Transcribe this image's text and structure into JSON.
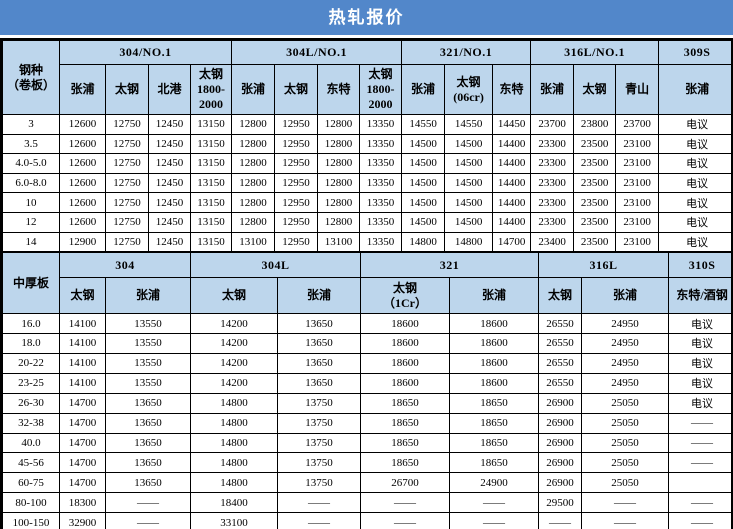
{
  "title": "热轧报价",
  "colors": {
    "title_bg": "#5287ca",
    "title_text": "#ffffff",
    "header_bg": "#bdd6ec",
    "grid_line": "#000000",
    "cell_bg": "#ffffff"
  },
  "sections": [
    {
      "name": "卷板",
      "corner": "钢种\n（卷板）",
      "groups": [
        {
          "grade": "304/NO.1",
          "mills": [
            "张浦",
            "太钢",
            "北港",
            "太钢\n1800-\n2000"
          ]
        },
        {
          "grade": "304L/NO.1",
          "mills": [
            "张浦",
            "太钢",
            "东特",
            "太钢\n1800-\n2000"
          ]
        },
        {
          "grade": "321/NO.1",
          "mills": [
            "张浦",
            "太钢\n(06cr)",
            "东特"
          ]
        },
        {
          "grade": "316L/NO.1",
          "mills": [
            "张浦",
            "太钢",
            "青山"
          ]
        },
        {
          "grade": "309S",
          "mills": [
            "张浦"
          ]
        }
      ],
      "rows": [
        {
          "spec": "3",
          "values": [
            "12600",
            "12750",
            "12450",
            "13150",
            "12800",
            "12950",
            "12800",
            "13350",
            "14550",
            "14550",
            "14450",
            "23700",
            "23800",
            "23700",
            "电议"
          ]
        },
        {
          "spec": "3.5",
          "values": [
            "12600",
            "12750",
            "12450",
            "13150",
            "12800",
            "12950",
            "12800",
            "13350",
            "14500",
            "14500",
            "14400",
            "23300",
            "23500",
            "23100",
            "电议"
          ]
        },
        {
          "spec": "4.0-5.0",
          "values": [
            "12600",
            "12750",
            "12450",
            "13150",
            "12800",
            "12950",
            "12800",
            "13350",
            "14500",
            "14500",
            "14400",
            "23300",
            "23500",
            "23100",
            "电议"
          ]
        },
        {
          "spec": "6.0-8.0",
          "values": [
            "12600",
            "12750",
            "12450",
            "13150",
            "12800",
            "12950",
            "12800",
            "13350",
            "14500",
            "14500",
            "14400",
            "23300",
            "23500",
            "23100",
            "电议"
          ]
        },
        {
          "spec": "10",
          "values": [
            "12600",
            "12750",
            "12450",
            "13150",
            "12800",
            "12950",
            "12800",
            "13350",
            "14500",
            "14500",
            "14400",
            "23300",
            "23500",
            "23100",
            "电议"
          ]
        },
        {
          "spec": "12",
          "values": [
            "12600",
            "12750",
            "12450",
            "13150",
            "12800",
            "12950",
            "12800",
            "13350",
            "14500",
            "14500",
            "14400",
            "23300",
            "23500",
            "23100",
            "电议"
          ]
        },
        {
          "spec": "14",
          "values": [
            "12900",
            "12750",
            "12450",
            "13150",
            "13100",
            "12950",
            "13100",
            "13350",
            "14800",
            "14800",
            "14700",
            "23400",
            "23500",
            "23100",
            "电议"
          ]
        }
      ]
    },
    {
      "name": "中厚板",
      "corner": "中厚板",
      "groups": [
        {
          "grade": "304",
          "mills": [
            "太钢",
            "张浦"
          ]
        },
        {
          "grade": "304L",
          "mills": [
            "太钢",
            "张浦"
          ]
        },
        {
          "grade": "321",
          "mills": [
            "太钢\n（1Cr）",
            "张浦"
          ]
        },
        {
          "grade": "316L",
          "mills": [
            "太钢",
            "张浦"
          ]
        },
        {
          "grade": "310S",
          "mills": [
            "东特/酒钢"
          ]
        }
      ],
      "rows": [
        {
          "spec": "16.0",
          "values": [
            "14100",
            "13550",
            "14200",
            "13650",
            "18600",
            "18600",
            "26550",
            "24950",
            "电议"
          ]
        },
        {
          "spec": "18.0",
          "values": [
            "14100",
            "13550",
            "14200",
            "13650",
            "18600",
            "18600",
            "26550",
            "24950",
            "电议"
          ]
        },
        {
          "spec": "20-22",
          "values": [
            "14100",
            "13550",
            "14200",
            "13650",
            "18600",
            "18600",
            "26550",
            "24950",
            "电议"
          ]
        },
        {
          "spec": "23-25",
          "values": [
            "14100",
            "13550",
            "14200",
            "13650",
            "18600",
            "18600",
            "26550",
            "24950",
            "电议"
          ]
        },
        {
          "spec": "26-30",
          "values": [
            "14700",
            "13650",
            "14800",
            "13750",
            "18650",
            "18650",
            "26900",
            "25050",
            "电议"
          ]
        },
        {
          "spec": "32-38",
          "values": [
            "14700",
            "13650",
            "14800",
            "13750",
            "18650",
            "18650",
            "26900",
            "25050",
            "——"
          ]
        },
        {
          "spec": "40.0",
          "values": [
            "14700",
            "13650",
            "14800",
            "13750",
            "18650",
            "18650",
            "26900",
            "25050",
            "——"
          ]
        },
        {
          "spec": "45-56",
          "values": [
            "14700",
            "13650",
            "14800",
            "13750",
            "18650",
            "18650",
            "26900",
            "25050",
            "——"
          ]
        },
        {
          "spec": "60-75",
          "values": [
            "14700",
            "13650",
            "14800",
            "13750",
            "26700",
            "24900",
            "26900",
            "25050",
            ""
          ]
        },
        {
          "spec": "80-100",
          "values": [
            "18300",
            "——",
            "18400",
            "——",
            "——",
            "——",
            "29500",
            "——",
            "——"
          ]
        },
        {
          "spec": "100-150",
          "values": [
            "32900",
            "——",
            "33100",
            "——",
            "——",
            "——",
            "——",
            "——",
            "——"
          ]
        }
      ]
    }
  ]
}
